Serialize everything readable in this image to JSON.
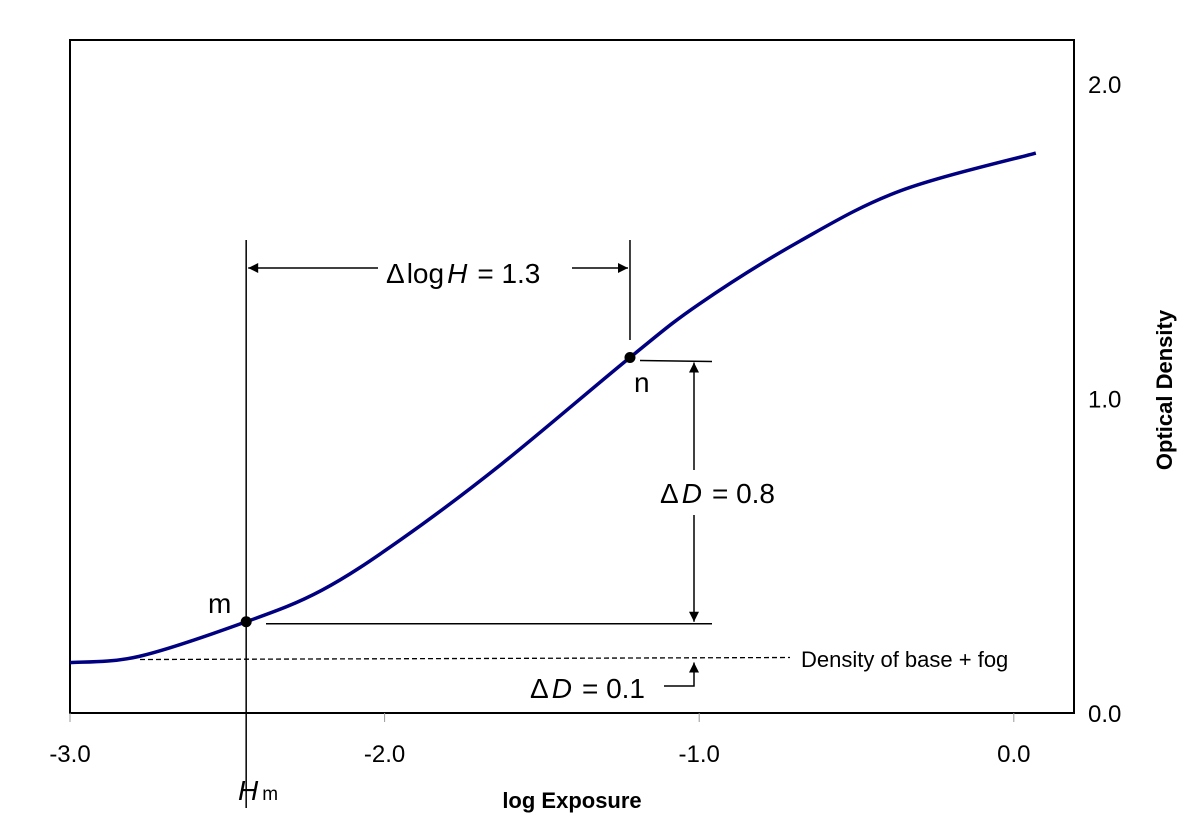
{
  "chart_data": {
    "type": "line",
    "title": "",
    "xlabel": "log Exposure",
    "ylabel": "Optical Density",
    "xlim": [
      -3.0,
      0.2
    ],
    "ylim": [
      0.0,
      2.14
    ],
    "x_ticks": [
      "-3.0",
      "-2.0",
      "-1.0",
      "0.0"
    ],
    "y_ticks": [
      "0.0",
      "1.0",
      "2.0"
    ],
    "y_axis_side": "right",
    "grid": false,
    "series": [
      {
        "color": "#000080",
        "x": [
          -3.0,
          -2.78,
          -2.44,
          -2.2,
          -1.95,
          -1.63,
          -1.22,
          -1.0,
          -0.68,
          -0.36,
          0.07
        ],
        "y": [
          0.16,
          0.18,
          0.29,
          0.39,
          0.55,
          0.79,
          1.13,
          1.3,
          1.5,
          1.66,
          1.78
        ]
      }
    ],
    "points": [
      {
        "label": "m",
        "x": -2.44,
        "y": 0.29
      },
      {
        "label": "n",
        "x": -1.22,
        "y": 1.13
      }
    ],
    "base_fog_density": 0.17,
    "annotations": {
      "delta_logH": {
        "delta": "Δ",
        "log": "log",
        "var": "H",
        "value": "= 1.3"
      },
      "delta_D_08": {
        "delta": "Δ",
        "var": "D",
        "value": "= 0.8"
      },
      "delta_D_01": {
        "delta": "Δ",
        "var": "D",
        "value": "= 0.1"
      },
      "base_fog_label": "Density of base + fog",
      "Hm": {
        "var": "H",
        "sub": "m"
      }
    }
  }
}
